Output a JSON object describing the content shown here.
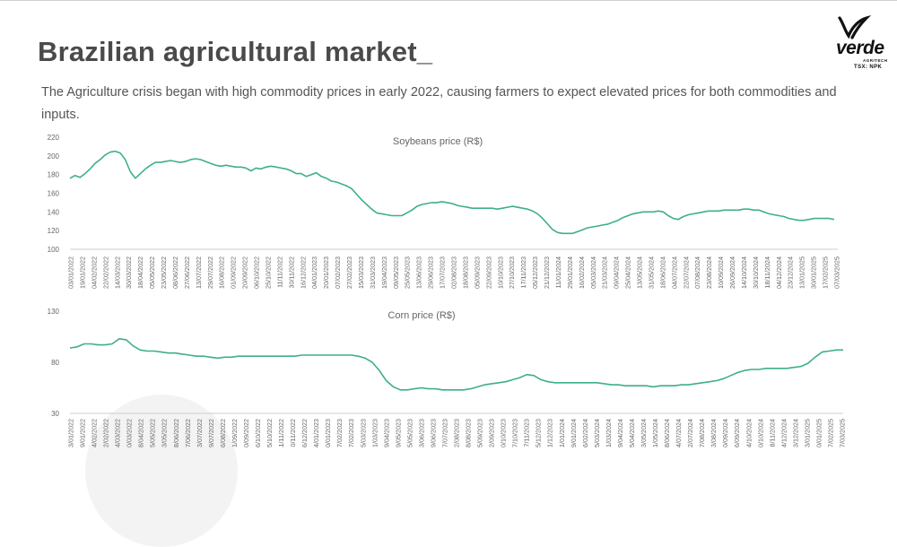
{
  "header": {
    "title": "Brazilian agricultural market_",
    "subtitle": "The Agriculture crisis began with high commodity prices in early 2022, causing farmers to expect elevated prices for both commodities and inputs."
  },
  "logo": {
    "word": "verde",
    "sub": "AGRITECH",
    "ticker": "TSX: NPK",
    "icon": "verde-leaf-logo-icon"
  },
  "colors": {
    "line": "#3fae8c",
    "text": "#666666",
    "axis": "#cccccc"
  },
  "chart_data": [
    {
      "type": "line",
      "title": "Soybeans price (R$)",
      "ylim": [
        100,
        220
      ],
      "yticks": [
        100,
        120,
        140,
        160,
        180,
        200,
        220
      ],
      "grid": false,
      "x_ticks": [
        "03/01/2022",
        "19/01/2022",
        "04/02/2022",
        "22/02/2022",
        "14/03/2022",
        "30/03/2022",
        "18/04/2022",
        "05/05/2022",
        "23/05/2022",
        "08/06/2022",
        "27/06/2022",
        "13/07/2022",
        "29/07/2022",
        "16/08/2022",
        "01/09/2022",
        "20/09/2022",
        "06/10/2022",
        "25/10/2022",
        "11/11/2022",
        "30/11/2022",
        "16/12/2022",
        "04/01/2023",
        "20/01/2023",
        "07/02/2023",
        "27/02/2023",
        "15/03/2023",
        "31/03/2023",
        "19/04/2023",
        "09/05/2023",
        "25/05/2023",
        "13/06/2023",
        "29/06/2023",
        "17/07/2023",
        "02/08/2023",
        "18/08/2023",
        "05/09/2023",
        "22/09/2023",
        "10/10/2023",
        "27/10/2023",
        "17/11/2023",
        "05/12/2023",
        "21/12/2023",
        "11/01/2024",
        "29/01/2024",
        "16/02/2024",
        "05/03/2024",
        "21/03/2024",
        "09/04/2024",
        "25/04/2024",
        "13/05/2024",
        "31/05/2024",
        "18/06/2024",
        "04/07/2024",
        "22/07/2024",
        "07/08/2024",
        "23/08/2024",
        "10/09/2024",
        "26/09/2024",
        "14/10/2024",
        "30/10/2024",
        "18/11/2024",
        "04/12/2024",
        "23/12/2024",
        "13/01/2025",
        "30/01/2025",
        "17/02/2025",
        "07/03/2025"
      ],
      "series": [
        {
          "values": [
            176,
            179,
            177,
            181,
            186,
            192,
            196,
            201,
            204,
            205,
            203,
            196,
            183,
            176,
            181,
            186,
            190,
            193,
            193,
            194,
            195,
            194,
            193,
            194,
            196,
            197,
            196,
            194,
            192,
            190,
            189,
            190,
            189,
            188,
            188,
            187,
            184,
            187,
            186,
            188,
            189,
            188,
            187,
            186,
            184,
            181,
            181,
            178,
            180,
            182,
            178,
            176,
            173,
            172,
            170,
            168,
            165,
            159,
            153,
            148,
            143,
            139,
            138,
            137,
            136,
            136,
            136,
            139,
            142,
            146,
            148,
            149,
            150,
            150,
            151,
            150,
            149,
            147,
            146,
            145,
            144,
            144,
            144,
            144,
            144,
            143,
            144,
            145,
            146,
            145,
            144,
            143,
            141,
            138,
            133,
            127,
            121,
            118,
            117,
            117,
            117,
            119,
            121,
            123,
            124,
            125,
            126,
            127,
            129,
            131,
            134,
            136,
            138,
            139,
            140,
            140,
            140,
            141,
            140,
            136,
            133,
            132,
            135,
            137,
            138,
            139,
            140,
            141,
            141,
            141,
            142,
            142,
            142,
            142,
            143,
            143,
            142,
            142,
            140,
            138,
            137,
            136,
            135,
            133,
            132,
            131,
            131,
            132,
            133,
            133,
            133,
            133,
            132
          ]
        }
      ]
    },
    {
      "type": "line",
      "title": "Corn price (R$)",
      "ylim": [
        30,
        130
      ],
      "yticks": [
        30,
        80,
        130
      ],
      "grid": false,
      "x_ticks": [
        "03/01/2022",
        "19/01/2022",
        "04/02/2022",
        "22/02/2022",
        "14/03/2022",
        "30/03/2022",
        "18/04/2022",
        "05/05/2022",
        "23/05/2022",
        "08/06/2022",
        "27/06/2022",
        "13/07/2022",
        "29/07/2022",
        "16/08/2022",
        "01/09/2022",
        "20/09/2022",
        "06/10/2022",
        "25/10/2022",
        "11/11/2022",
        "30/11/2022",
        "16/12/2022",
        "04/01/2023",
        "20/01/2023",
        "07/02/2023",
        "27/02/2023",
        "15/03/2023",
        "31/03/2023",
        "19/04/2023",
        "09/05/2023",
        "25/05/2023",
        "13/06/2023",
        "29/06/2023",
        "17/07/2023",
        "02/08/2023",
        "18/08/2023",
        "05/09/2023",
        "22/09/2023",
        "10/10/2023",
        "27/10/2023",
        "17/11/2023",
        "05/12/2023",
        "21/12/2023",
        "11/01/2024",
        "29/01/2024",
        "16/02/2024",
        "05/03/2024",
        "21/03/2024",
        "09/04/2024",
        "25/04/2024",
        "13/05/2024",
        "31/05/2024",
        "18/06/2024",
        "04/07/2024",
        "22/07/2024",
        "07/08/2024",
        "23/08/2024",
        "10/09/2024",
        "26/09/2024",
        "14/10/2024",
        "30/10/2024",
        "18/11/2024",
        "04/12/2024",
        "23/12/2024",
        "13/01/2025",
        "30/01/2025",
        "17/02/2025",
        "07/03/2025"
      ],
      "series": [
        {
          "values": [
            94,
            95,
            98,
            98,
            97,
            97,
            98,
            103,
            102,
            96,
            92,
            91,
            91,
            90,
            89,
            89,
            88,
            87,
            86,
            86,
            85,
            84,
            85,
            85,
            86,
            86,
            86,
            86,
            86,
            86,
            86,
            86,
            86,
            87,
            87,
            87,
            87,
            87,
            87,
            87,
            87,
            86,
            84,
            80,
            72,
            62,
            56,
            53,
            53,
            54,
            55,
            54,
            54,
            53,
            53,
            53,
            53,
            54,
            56,
            58,
            59,
            60,
            61,
            63,
            65,
            68,
            67,
            63,
            61,
            60,
            60,
            60,
            60,
            60,
            60,
            60,
            59,
            58,
            58,
            57,
            57,
            57,
            57,
            56,
            57,
            57,
            57,
            58,
            58,
            59,
            60,
            61,
            62,
            64,
            67,
            70,
            72,
            73,
            73,
            74,
            74,
            74,
            74,
            75,
            76,
            79,
            85,
            90,
            91,
            92,
            92
          ]
        }
      ]
    }
  ]
}
